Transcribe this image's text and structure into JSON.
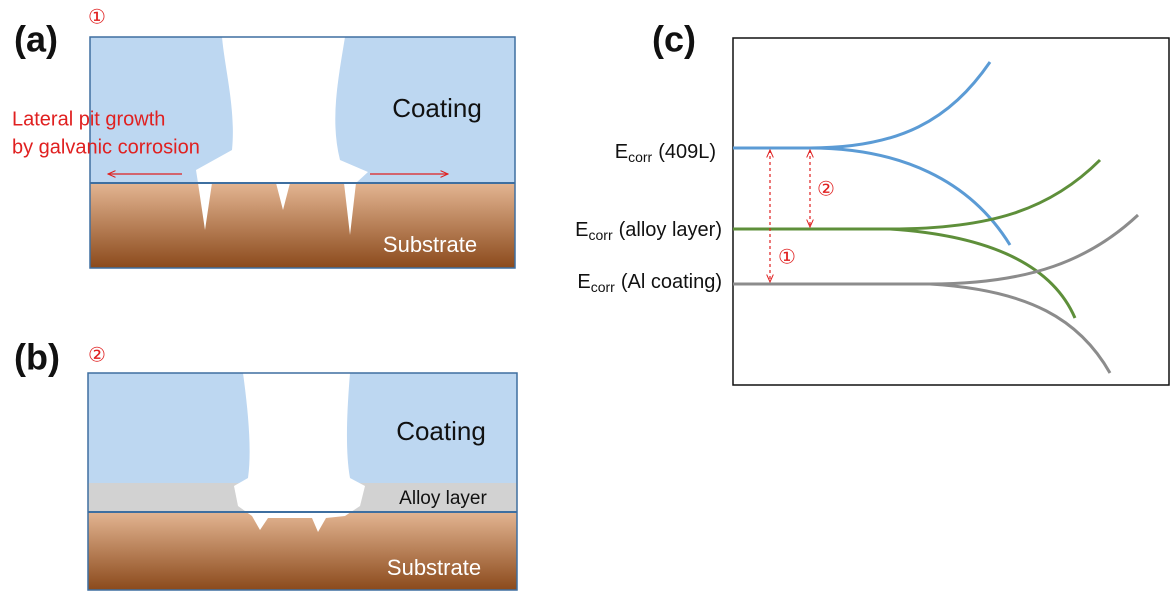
{
  "panel_a": {
    "label": "(a)",
    "marker": "①",
    "coating": "Coating",
    "note_line1": "Lateral pit growth",
    "note_line2": "by galvanic corrosion",
    "substrate": "Substrate"
  },
  "panel_b": {
    "label": "(b)",
    "marker": "②",
    "coating": "Coating",
    "alloy": "Alloy layer",
    "substrate": "Substrate"
  },
  "panel_c": {
    "label": "(c)",
    "levels": [
      {
        "symbol": "E",
        "sub": "corr",
        "name": "(409L)"
      },
      {
        "symbol": "E",
        "sub": "corr",
        "name": "(alloy layer)"
      },
      {
        "symbol": "E",
        "sub": "corr",
        "name": "(Al coating)"
      }
    ],
    "gap_markers": [
      "②",
      "①"
    ]
  }
}
